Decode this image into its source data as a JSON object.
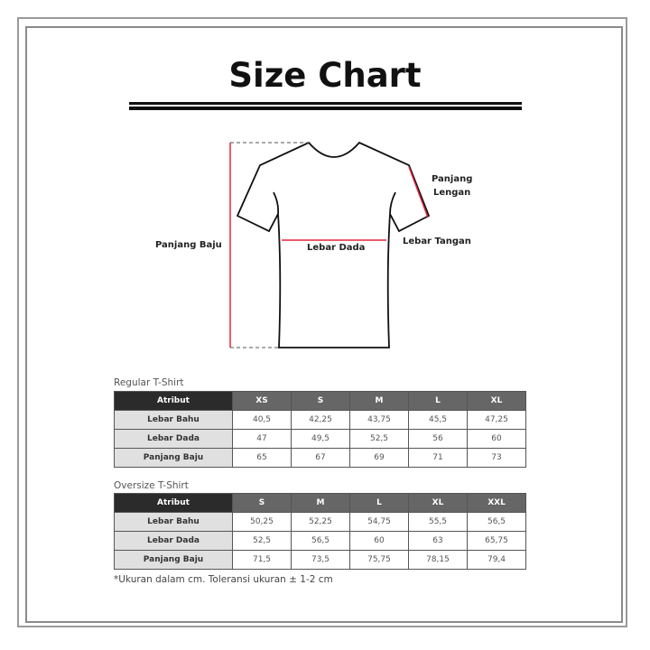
{
  "title": "Size Chart",
  "diagram": {
    "panjang_baju": "Panjang Baju",
    "lebar_dada": "Lebar Dada",
    "panjang_lengan_1": "Panjang",
    "panjang_lengan_2": "Lengan",
    "lebar_tangan": "Lebar Tangan",
    "accent_color": "#e8233f"
  },
  "regular": {
    "caption": "Regular T-Shirt",
    "headers": [
      "Atribut",
      "XS",
      "S",
      "M",
      "L",
      "XL"
    ],
    "rows": [
      [
        "Lebar Bahu",
        "40,5",
        "42,25",
        "43,75",
        "45,5",
        "47,25"
      ],
      [
        "Lebar Dada",
        "47",
        "49,5",
        "52,5",
        "56",
        "60"
      ],
      [
        "Panjang Baju",
        "65",
        "67",
        "69",
        "71",
        "73"
      ]
    ]
  },
  "oversize": {
    "caption": "Oversize T-Shirt",
    "headers": [
      "Atribut",
      "S",
      "M",
      "L",
      "XL",
      "XXL"
    ],
    "rows": [
      [
        "Lebar Bahu",
        "50,25",
        "52,25",
        "54,75",
        "55,5",
        "56,5"
      ],
      [
        "Lebar Dada",
        "52,5",
        "56,5",
        "60",
        "63",
        "65,75"
      ],
      [
        "Panjang Baju",
        "71,5",
        "73,5",
        "75,75",
        "78,15",
        "79,4"
      ]
    ]
  },
  "note": "*Ukuran dalam cm. Toleransi ukuran ± 1-2 cm"
}
